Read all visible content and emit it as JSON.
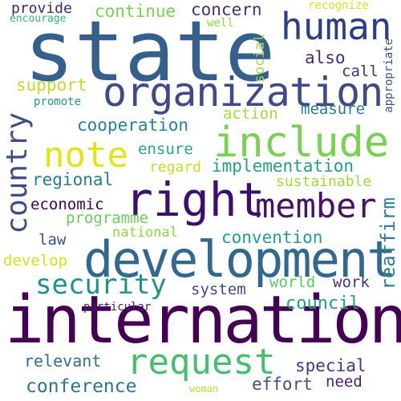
{
  "words": [
    {
      "text": "state",
      "color": "#355f8d"
    },
    {
      "text": "international",
      "color": "#440154"
    },
    {
      "text": "development",
      "color": "#31688e"
    },
    {
      "text": "right",
      "color": "#3b0f70"
    },
    {
      "text": "organization",
      "color": "#3e4a89"
    },
    {
      "text": "include",
      "color": "#7ad151"
    },
    {
      "text": "request",
      "color": "#44bf70"
    },
    {
      "text": "human",
      "color": "#2c3e85"
    },
    {
      "text": "member",
      "color": "#471164"
    },
    {
      "text": "security",
      "color": "#21918c"
    },
    {
      "text": "note",
      "color": "#e3e418"
    },
    {
      "text": "country",
      "color": "#3e4c8a"
    },
    {
      "text": "cooperation",
      "color": "#26828e"
    },
    {
      "text": "implementation",
      "color": "#1f9e89"
    },
    {
      "text": "convention",
      "color": "#1fa088"
    },
    {
      "text": "conference",
      "color": "#2a768e"
    },
    {
      "text": "council",
      "color": "#1fa187"
    },
    {
      "text": "continue",
      "color": "#7ad151"
    },
    {
      "text": "concern",
      "color": "#472d7b"
    },
    {
      "text": "provide",
      "color": "#482475"
    },
    {
      "text": "also",
      "color": "#482878"
    },
    {
      "text": "call",
      "color": "#472f7d"
    },
    {
      "text": "support",
      "color": "#bddf26"
    },
    {
      "text": "action",
      "color": "#a5db36"
    },
    {
      "text": "measure",
      "color": "#277f8e"
    },
    {
      "text": "ensure",
      "color": "#22a884"
    },
    {
      "text": "regard",
      "color": "#c2df23"
    },
    {
      "text": "regional",
      "color": "#287c8e"
    },
    {
      "text": "sustainable",
      "color": "#9fda3a"
    },
    {
      "text": "economic",
      "color": "#440154"
    },
    {
      "text": "programme",
      "color": "#6ccd5a"
    },
    {
      "text": "national",
      "color": "#8ed645"
    },
    {
      "text": "law",
      "color": "#3b528b"
    },
    {
      "text": "develop",
      "color": "#d2e21b"
    },
    {
      "text": "system",
      "color": "#3e4989"
    },
    {
      "text": "world",
      "color": "#5ec962"
    },
    {
      "text": "work",
      "color": "#46337e"
    },
    {
      "text": "reaffirm",
      "color": "#26828e"
    },
    {
      "text": "relevant",
      "color": "#2c728e"
    },
    {
      "text": "special",
      "color": "#453781"
    },
    {
      "text": "effort",
      "color": "#3b528b"
    },
    {
      "text": "need",
      "color": "#482173"
    },
    {
      "text": "particular",
      "color": "#481a6c"
    },
    {
      "text": "woman",
      "color": "#b5de2b"
    },
    {
      "text": "promote",
      "color": "#1f988b"
    },
    {
      "text": "encourage",
      "color": "#35b779"
    },
    {
      "text": "recognize",
      "color": "#d8e219"
    },
    {
      "text": "well",
      "color": "#8fd744"
    },
    {
      "text": "social",
      "color": "#a2da37"
    },
    {
      "text": "appropriate",
      "color": "#3b528b"
    }
  ]
}
